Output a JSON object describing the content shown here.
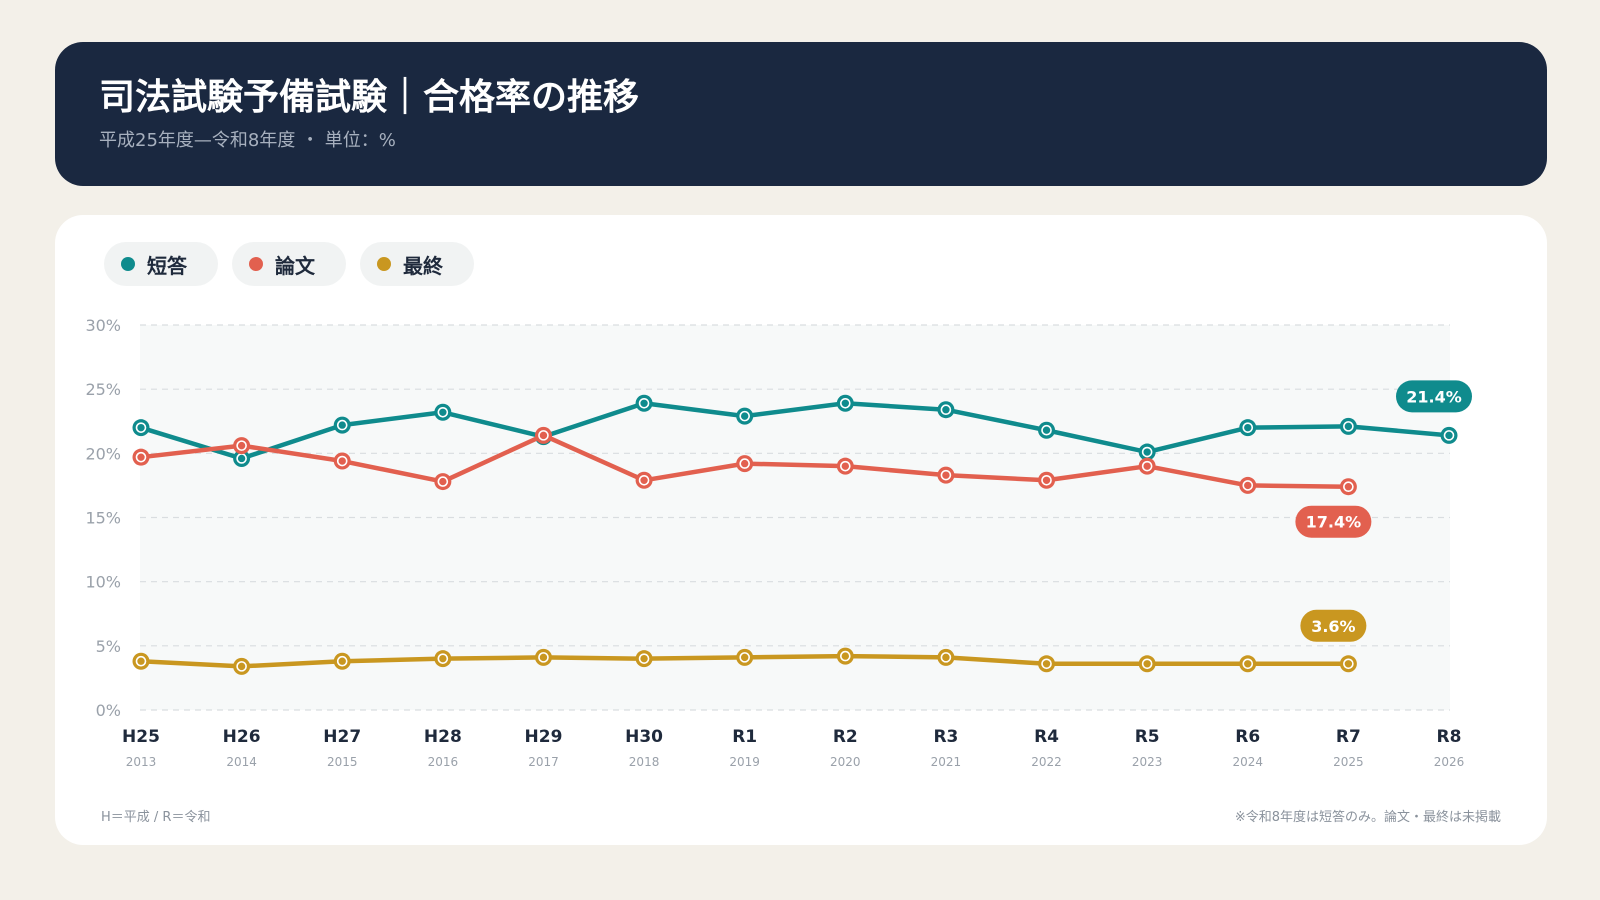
{
  "header": {
    "title": "司法試験予備試験｜合格率の推移",
    "subtitle": "平成25年度—令和8年度 ・ 単位：%"
  },
  "legend": [
    {
      "label": "短答",
      "color": "#0f8b8d"
    },
    {
      "label": "論文",
      "color": "#e2604f"
    },
    {
      "label": "最終",
      "color": "#c99720"
    }
  ],
  "footer": {
    "left": "H＝平成 / R＝令和",
    "right": "※令和8年度は短答のみ。論文・最終は未掲載"
  },
  "chart_data": {
    "type": "line",
    "categories": [
      "H25",
      "H26",
      "H27",
      "H28",
      "H29",
      "H30",
      "R1",
      "R2",
      "R3",
      "R4",
      "R5",
      "R6",
      "R7",
      "R8"
    ],
    "sublabels": [
      "2013",
      "2014",
      "2015",
      "2016",
      "2017",
      "2018",
      "2019",
      "2020",
      "2021",
      "2022",
      "2023",
      "2024",
      "2025",
      "2026"
    ],
    "ylim": [
      0,
      30
    ],
    "yticks": [
      0,
      5,
      10,
      15,
      20,
      25,
      30
    ],
    "ytick_labels": [
      "0%",
      "5%",
      "10%",
      "15%",
      "20%",
      "25%",
      "30%"
    ],
    "grid": true,
    "series": [
      {
        "name": "短答",
        "color": "#0f8b8d",
        "values": [
          22.0,
          19.6,
          22.2,
          23.2,
          21.3,
          23.9,
          22.9,
          23.9,
          23.4,
          21.8,
          20.1,
          22.0,
          22.1,
          21.4
        ],
        "end_label": "21.4%"
      },
      {
        "name": "論文",
        "color": "#e2604f",
        "values": [
          19.7,
          20.6,
          19.4,
          17.8,
          21.4,
          17.9,
          19.2,
          19.0,
          18.3,
          17.9,
          19.0,
          17.5,
          17.4,
          null
        ],
        "end_label": "17.4%"
      },
      {
        "name": "最終",
        "color": "#c99720",
        "values": [
          3.8,
          3.4,
          3.8,
          4.0,
          4.1,
          4.0,
          4.1,
          4.2,
          4.1,
          3.6,
          3.6,
          3.6,
          3.6,
          null
        ],
        "end_label": "3.6%"
      }
    ]
  }
}
